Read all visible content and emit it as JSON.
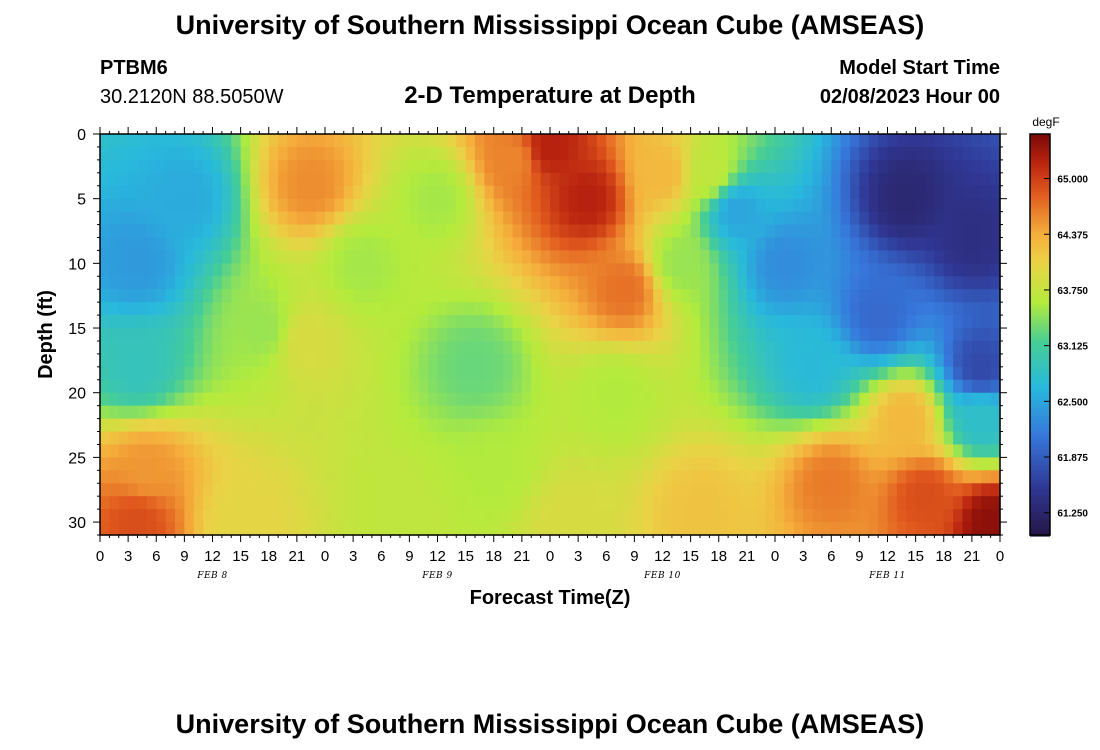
{
  "header": {
    "title": "University of Southern Mississippi Ocean Cube (AMSEAS)",
    "station_id": "PTBM6",
    "coordinates": "30.2120N  88.5050W",
    "subtitle": "2-D Temperature at Depth",
    "model_start_label": "Model Start Time",
    "model_start_value": "02/08/2023 Hour 00"
  },
  "footer": {
    "title": "University of Southern Mississippi Ocean Cube (AMSEAS)"
  },
  "chart_data": {
    "type": "heatmap",
    "title": "2-D Temperature at Depth",
    "xlabel": "Forecast Time(Z)",
    "ylabel": "Depth (ft)",
    "x_tick_labels": [
      "0",
      "3",
      "6",
      "9",
      "12",
      "15",
      "18",
      "21",
      "0",
      "3",
      "6",
      "9",
      "12",
      "15",
      "18",
      "21",
      "0",
      "3",
      "6",
      "9",
      "12",
      "15",
      "18",
      "21",
      "0",
      "3",
      "6",
      "9",
      "12",
      "15",
      "18",
      "21",
      "0"
    ],
    "x_range_hours": [
      0,
      96
    ],
    "date_labels": [
      {
        "label": "FEB 8",
        "center_hour": 12
      },
      {
        "label": "FEB 9",
        "center_hour": 36
      },
      {
        "label": "FEB 10",
        "center_hour": 60
      },
      {
        "label": "FEB 11",
        "center_hour": 84
      }
    ],
    "y_ticks": [
      0,
      5,
      10,
      15,
      20,
      25,
      30
    ],
    "y_range_ft": [
      0,
      31
    ],
    "colorbar": {
      "unit": "degF",
      "ticks": [
        "65.000",
        "64.375",
        "63.750",
        "63.125",
        "62.500",
        "61.875",
        "61.250"
      ],
      "tick_values": [
        65.0,
        64.375,
        63.75,
        63.125,
        62.5,
        61.875,
        61.25
      ],
      "min": 61.0,
      "max": 65.5
    },
    "features": [
      {
        "t": 4,
        "d": 10,
        "v": 62.4
      },
      {
        "t": 4,
        "d": 18,
        "v": 62.9
      },
      {
        "t": 9,
        "d": 5,
        "v": 62.55
      },
      {
        "t": 5,
        "d": 26,
        "v": 64.5
      },
      {
        "t": 4,
        "d": 30,
        "v": 64.9
      },
      {
        "t": 15,
        "d": 30,
        "v": 64.0
      },
      {
        "t": 17.5,
        "d": 15,
        "v": 63.5
      },
      {
        "t": 22.5,
        "d": 4,
        "v": 64.55
      },
      {
        "t": 22,
        "d": 16,
        "v": 63.9
      },
      {
        "t": 28,
        "d": 10,
        "v": 63.55
      },
      {
        "t": 36,
        "d": 5,
        "v": 63.55
      },
      {
        "t": 40,
        "d": 18,
        "v": 63.3
      },
      {
        "t": 42,
        "d": 26,
        "v": 63.6
      },
      {
        "t": 44,
        "d": 2,
        "v": 64.6
      },
      {
        "t": 48,
        "d": 1,
        "v": 65.2
      },
      {
        "t": 52,
        "d": 5,
        "v": 65.2
      },
      {
        "t": 56,
        "d": 12,
        "v": 64.7
      },
      {
        "t": 55,
        "d": 20,
        "v": 63.6
      },
      {
        "t": 60,
        "d": 3,
        "v": 64.3
      },
      {
        "t": 62,
        "d": 10,
        "v": 63.5
      },
      {
        "t": 65,
        "d": 3,
        "v": 63.7
      },
      {
        "t": 68,
        "d": 6,
        "v": 62.5
      },
      {
        "t": 73,
        "d": 10,
        "v": 62.3
      },
      {
        "t": 76,
        "d": 18,
        "v": 62.7
      },
      {
        "t": 83,
        "d": 14,
        "v": 62.0
      },
      {
        "t": 86,
        "d": 5,
        "v": 61.3
      },
      {
        "t": 93,
        "d": 8,
        "v": 61.4
      },
      {
        "t": 94,
        "d": 18,
        "v": 61.7
      },
      {
        "t": 86,
        "d": 22,
        "v": 64.3
      },
      {
        "t": 94,
        "d": 22,
        "v": 62.8
      },
      {
        "t": 78,
        "d": 27,
        "v": 64.65
      },
      {
        "t": 88,
        "d": 28,
        "v": 64.9
      },
      {
        "t": 95,
        "d": 30,
        "v": 65.4
      },
      {
        "t": 64,
        "d": 29,
        "v": 64.2
      },
      {
        "t": 50,
        "d": 30,
        "v": 63.9
      },
      {
        "t": 32,
        "d": 29,
        "v": 63.7
      }
    ]
  }
}
